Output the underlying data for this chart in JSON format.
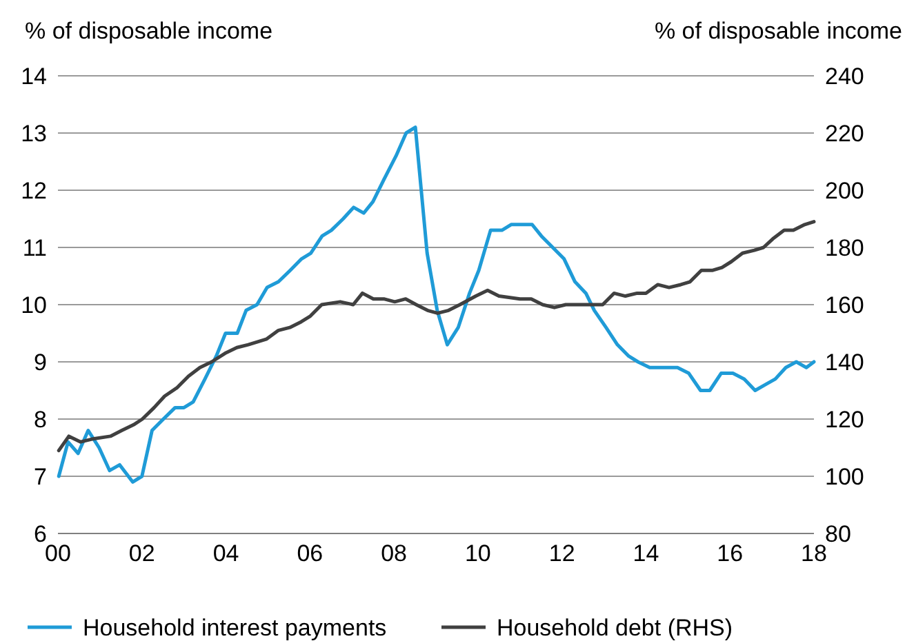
{
  "chart_data": {
    "type": "line",
    "ylabel": "% of disposable income",
    "y2label": "% of disposable income",
    "xlim": [
      0,
      18
    ],
    "xticks": [
      {
        "value": 0,
        "label": "00"
      },
      {
        "value": 2,
        "label": "02"
      },
      {
        "value": 4,
        "label": "04"
      },
      {
        "value": 6,
        "label": "06"
      },
      {
        "value": 8,
        "label": "08"
      },
      {
        "value": 10,
        "label": "10"
      },
      {
        "value": 12,
        "label": "12"
      },
      {
        "value": 14,
        "label": "14"
      },
      {
        "value": 16,
        "label": "16"
      },
      {
        "value": 18,
        "label": "18"
      }
    ],
    "ylim": [
      6,
      14
    ],
    "yticks": [
      6,
      7,
      8,
      9,
      10,
      11,
      12,
      13,
      14
    ],
    "y2lim": [
      80,
      240
    ],
    "y2ticks": [
      80,
      100,
      120,
      140,
      160,
      180,
      200,
      220,
      240
    ],
    "grid": "y",
    "legend": "bottom",
    "line_style": "solid",
    "marker": "none",
    "series": [
      {
        "name": "Household interest payments",
        "color": "#1f9bd7",
        "x": [
          0.02,
          0.24,
          0.48,
          0.72,
          0.98,
          1.23,
          1.47,
          1.78,
          2.0,
          2.24,
          2.51,
          2.79,
          3.0,
          3.22,
          3.5,
          3.77,
          3.99,
          4.27,
          4.48,
          4.74,
          4.98,
          5.25,
          5.53,
          5.8,
          6.02,
          6.29,
          6.51,
          6.79,
          7.04,
          7.28,
          7.5,
          7.77,
          8.05,
          8.29,
          8.51,
          8.79,
          9.03,
          9.27,
          9.53,
          9.8,
          10.02,
          10.3,
          10.57,
          10.79,
          11.29,
          11.51,
          11.78,
          12.05,
          12.31,
          12.57,
          12.77,
          13.05,
          13.32,
          13.59,
          13.81,
          14.09,
          14.75,
          15.02,
          15.3,
          15.52,
          15.79,
          16.07,
          16.34,
          16.6,
          16.84,
          17.08,
          17.33,
          17.58,
          17.82,
          18.0
        ],
        "values": [
          7.0,
          7.6,
          7.4,
          7.8,
          7.5,
          7.1,
          7.2,
          6.9,
          7.0,
          7.8,
          8.0,
          8.2,
          8.2,
          8.3,
          8.7,
          9.1,
          9.5,
          9.5,
          9.9,
          10.0,
          10.3,
          10.4,
          10.6,
          10.8,
          10.9,
          11.2,
          11.3,
          11.5,
          11.7,
          11.6,
          11.8,
          12.2,
          12.6,
          13.0,
          13.1,
          10.9,
          9.9,
          9.3,
          9.6,
          10.2,
          10.6,
          11.3,
          11.3,
          11.4,
          11.4,
          11.2,
          11.0,
          10.8,
          10.4,
          10.2,
          9.9,
          9.6,
          9.3,
          9.1,
          9.0,
          8.9,
          8.9,
          8.8,
          8.5,
          8.5,
          8.8,
          8.8,
          8.7,
          8.5,
          8.6,
          8.7,
          8.9,
          9.0,
          8.9,
          9.0
        ]
      },
      {
        "name": "Household debt (RHS)",
        "color": "#404040",
        "axis": "y2",
        "x": [
          0.02,
          0.26,
          0.54,
          0.81,
          1.25,
          1.52,
          1.8,
          2.01,
          2.29,
          2.54,
          2.84,
          3.11,
          3.38,
          3.66,
          3.98,
          4.26,
          4.53,
          4.97,
          5.25,
          5.52,
          5.79,
          6.01,
          6.28,
          6.72,
          7.03,
          7.25,
          7.51,
          7.76,
          8.02,
          8.28,
          8.53,
          8.8,
          9.04,
          9.3,
          9.57,
          9.95,
          10.23,
          10.5,
          11.0,
          11.27,
          11.54,
          11.82,
          12.09,
          12.31,
          12.75,
          12.97,
          13.24,
          13.51,
          13.79,
          14.0,
          14.28,
          14.55,
          14.83,
          15.05,
          15.32,
          15.59,
          15.81,
          16.03,
          16.3,
          16.58,
          16.8,
          17.02,
          17.29,
          17.51,
          17.78,
          18.0
        ],
        "values": [
          109,
          114,
          112,
          113,
          114,
          116,
          118,
          120,
          124,
          128,
          131,
          135,
          138,
          140,
          143,
          145,
          146,
          148,
          151,
          152,
          154,
          156,
          160,
          161,
          160,
          164,
          162,
          162,
          161,
          162,
          160,
          158,
          157,
          158,
          160,
          163,
          165,
          163,
          162,
          162,
          160,
          159,
          160,
          160,
          160,
          160,
          164,
          163,
          164,
          164,
          167,
          166,
          167,
          168,
          172,
          172,
          173,
          175,
          178,
          179,
          180,
          183,
          186,
          186,
          188,
          189
        ]
      }
    ]
  }
}
